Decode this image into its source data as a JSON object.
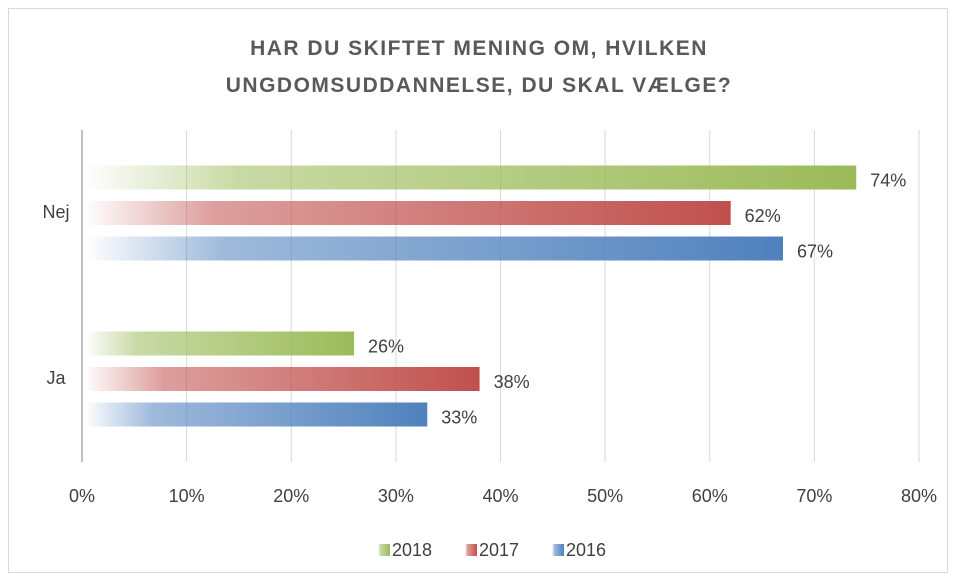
{
  "chart_data": {
    "type": "hbar",
    "title": "HAR DU SKIFTET MENING OM, HVILKEN UNGDOMSUDDANNELSE, DU SKAL VÆLGE?",
    "categories": [
      "Nej",
      "Ja"
    ],
    "series": [
      {
        "name": "2018",
        "color": "#9bbb59",
        "values": [
          74,
          26
        ],
        "value_labels": [
          "74%",
          "26%"
        ]
      },
      {
        "name": "2017",
        "color": "#c0504d",
        "values": [
          62,
          38
        ],
        "value_labels": [
          "62%",
          "38%"
        ]
      },
      {
        "name": "2016",
        "color": "#4f81bd",
        "values": [
          67,
          33
        ],
        "value_labels": [
          "67%",
          "33%"
        ]
      }
    ],
    "xlim": [
      0,
      80
    ],
    "xticks": [
      {
        "value": 0,
        "label": "0%"
      },
      {
        "value": 10,
        "label": "10%"
      },
      {
        "value": 20,
        "label": "20%"
      },
      {
        "value": 30,
        "label": "30%"
      },
      {
        "value": 40,
        "label": "40%"
      },
      {
        "value": 50,
        "label": "50%"
      },
      {
        "value": 60,
        "label": "60%"
      },
      {
        "value": 70,
        "label": "70%"
      },
      {
        "value": 80,
        "label": "80%"
      }
    ],
    "grid": true,
    "legend": "bottom"
  }
}
